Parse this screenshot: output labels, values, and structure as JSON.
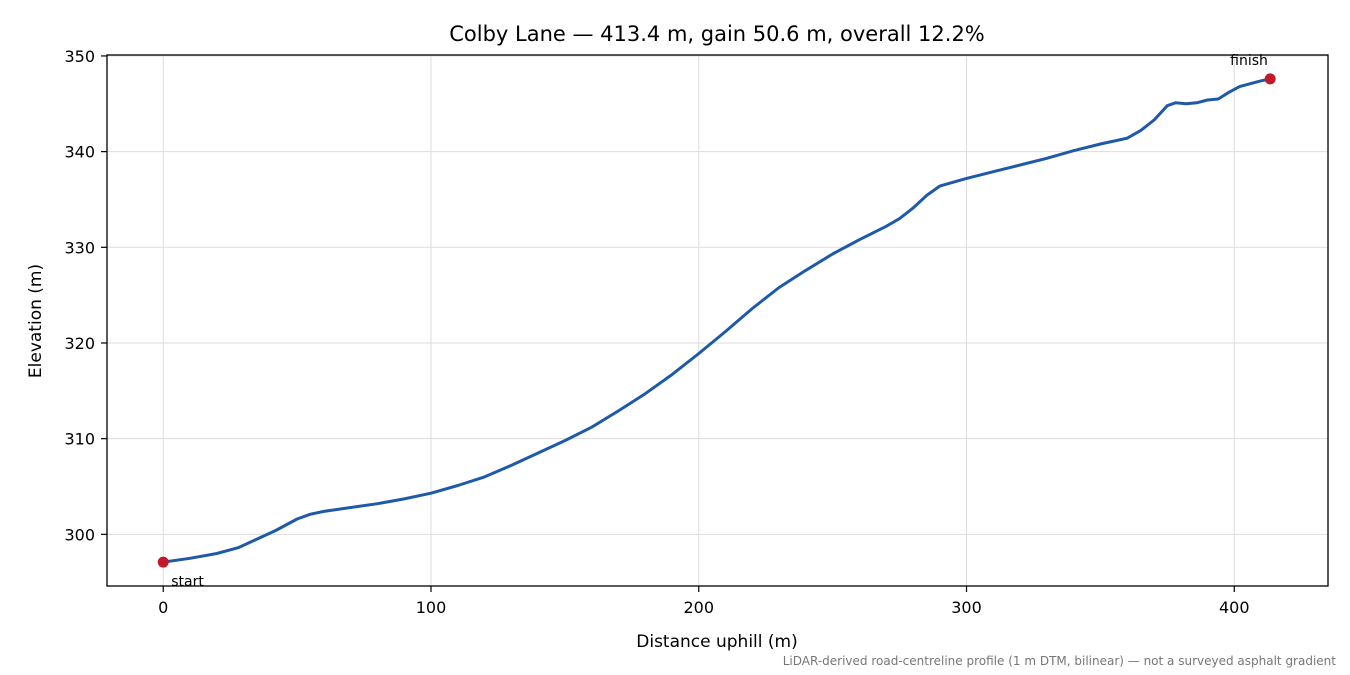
{
  "chart_data": {
    "type": "line",
    "title": "Colby Lane — 413.4 m, gain 50.6 m, overall 12.2%",
    "xlabel": "Distance uphill (m)",
    "ylabel": "Elevation (m)",
    "xlim": [
      -21,
      435
    ],
    "ylim": [
      294.6,
      350.1
    ],
    "xticks": [
      0,
      100,
      200,
      300,
      400
    ],
    "yticks": [
      300,
      310,
      320,
      330,
      340,
      350
    ],
    "grid": true,
    "series": [
      {
        "color": "#1f5aa8",
        "x": [
          0,
          10,
          20,
          28,
          35,
          42,
          50,
          55,
          60,
          70,
          80,
          90,
          100,
          110,
          120,
          130,
          140,
          150,
          160,
          170,
          180,
          190,
          200,
          210,
          220,
          230,
          240,
          250,
          260,
          270,
          275,
          280,
          285,
          290,
          300,
          310,
          320,
          330,
          340,
          350,
          355,
          360,
          365,
          370,
          375,
          378,
          382,
          386,
          390,
          394,
          398,
          402,
          406,
          410,
          413.4
        ],
        "y": [
          297.1,
          297.5,
          298.0,
          298.6,
          299.5,
          300.4,
          301.6,
          302.1,
          302.4,
          302.8,
          303.2,
          303.7,
          304.3,
          305.1,
          306.0,
          307.2,
          308.5,
          309.8,
          311.2,
          312.9,
          314.7,
          316.7,
          318.9,
          321.2,
          323.6,
          325.8,
          327.6,
          329.3,
          330.8,
          332.2,
          333.0,
          334.1,
          335.4,
          336.4,
          337.2,
          337.9,
          338.6,
          339.3,
          340.1,
          340.8,
          341.1,
          341.4,
          342.2,
          343.3,
          344.8,
          345.1,
          345.0,
          345.1,
          345.4,
          345.5,
          346.2,
          346.8,
          347.1,
          347.4,
          347.6
        ]
      }
    ],
    "markers": [
      {
        "label": "start",
        "x": 0,
        "y": 297.1,
        "color": "#c0192a"
      },
      {
        "label": "finish",
        "x": 413.4,
        "y": 347.6,
        "color": "#c0192a"
      }
    ],
    "footnote": "LiDAR-derived road-centreline profile (1 m DTM, bilinear) — not a surveyed asphalt gradient"
  }
}
